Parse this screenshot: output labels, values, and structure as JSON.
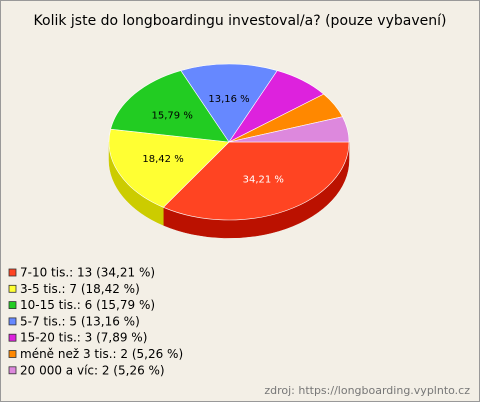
{
  "chart_data": {
    "type": "pie3d",
    "title": "Kolik jste do longboardingu investoval/a? (pouze vybavení)",
    "categories": [
      "7-10 tis.",
      "3-5 tis.",
      "10-15 tis.",
      "5-7 tis.",
      "15-20 tis.",
      "méně než 3 tis.",
      "20 000 a víc"
    ],
    "values": [
      34.21,
      18.42,
      15.79,
      13.16,
      7.89,
      5.26,
      5.26
    ],
    "value_labels": [
      "34,21 %",
      "18,42 %",
      "15,79 %",
      "13,16 %",
      null,
      null,
      null
    ],
    "legend": [
      "7-10 tis.: 13 (34,21 %)",
      "3-5 tis.: 7 (18,42 %)",
      "10-15 tis.: 6 (15,79 %)",
      "5-7 tis.: 5 (13,16 %)",
      "15-20 tis.: 3 (7,89 %)",
      "méně než 3 tis.: 2 (5,26 %)",
      "20 000 a víc: 2 (5,26 %)"
    ],
    "colors": [
      "#ff4422",
      "#ffff33",
      "#22cc22",
      "#6688ff",
      "#dd22dd",
      "#ff8800",
      "#dd88dd"
    ],
    "side_colors": [
      "#bb1100",
      "#cccc00",
      "#119911",
      "#3355cc",
      "#aa11aa",
      "#cc6600",
      "#aa66aa"
    ],
    "source": "zdroj: https://longboarding.vyplnto.cz"
  }
}
